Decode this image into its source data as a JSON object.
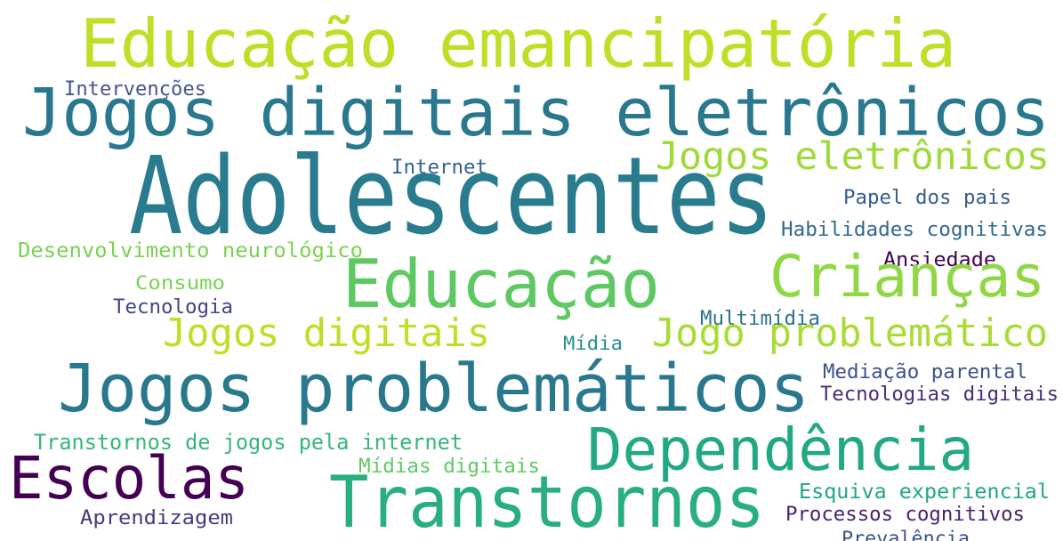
{
  "words": [
    {
      "text": "Educação emancipatória",
      "color": "#bddf26"
    },
    {
      "text": "Jogos digitais eletrônicos",
      "color": "#2a788e"
    },
    {
      "text": "Intervenções",
      "color": "#46558a"
    },
    {
      "text": "Jogos eletrônicos",
      "color": "#a0da39"
    },
    {
      "text": "Internet",
      "color": "#33638d"
    },
    {
      "text": "Adolescentes",
      "color": "#297b8e"
    },
    {
      "text": "Papel dos pais",
      "color": "#365c8d"
    },
    {
      "text": "Habilidades cognitivas",
      "color": "#31688e"
    },
    {
      "text": "Desenvolvimento neurológico",
      "color": "#7ad151"
    },
    {
      "text": "Ansiedade",
      "color": "#440154"
    },
    {
      "text": "Educação",
      "color": "#5ec962"
    },
    {
      "text": "Crianças",
      "color": "#8fd744"
    },
    {
      "text": "Consumo",
      "color": "#7ad151"
    },
    {
      "text": "Tecnologia",
      "color": "#414487"
    },
    {
      "text": "Multimídia",
      "color": "#2c728e"
    },
    {
      "text": "Jogos digitais",
      "color": "#bddf26"
    },
    {
      "text": "Jogo problemático",
      "color": "#a8db34"
    },
    {
      "text": "Mídia",
      "color": "#21918c"
    },
    {
      "text": "Mediação parental",
      "color": "#3b528b"
    },
    {
      "text": "Jogos problemáticos",
      "color": "#2a788e"
    },
    {
      "text": "Tecnologias digitais",
      "color": "#472d7b"
    },
    {
      "text": "Transtornos de jogos pela internet",
      "color": "#35b779"
    },
    {
      "text": "Dependência",
      "color": "#22a884"
    },
    {
      "text": "Escolas",
      "color": "#440154"
    },
    {
      "text": "Mídias digitais",
      "color": "#5ec962"
    },
    {
      "text": "Transtornos",
      "color": "#29af7f"
    },
    {
      "text": "Esquiva experiencial",
      "color": "#21a685"
    },
    {
      "text": "Aprendizagem",
      "color": "#443983"
    },
    {
      "text": "Processos cognitivos",
      "color": "#481f70"
    },
    {
      "text": "Prevalência",
      "color": "#3b528b"
    }
  ]
}
